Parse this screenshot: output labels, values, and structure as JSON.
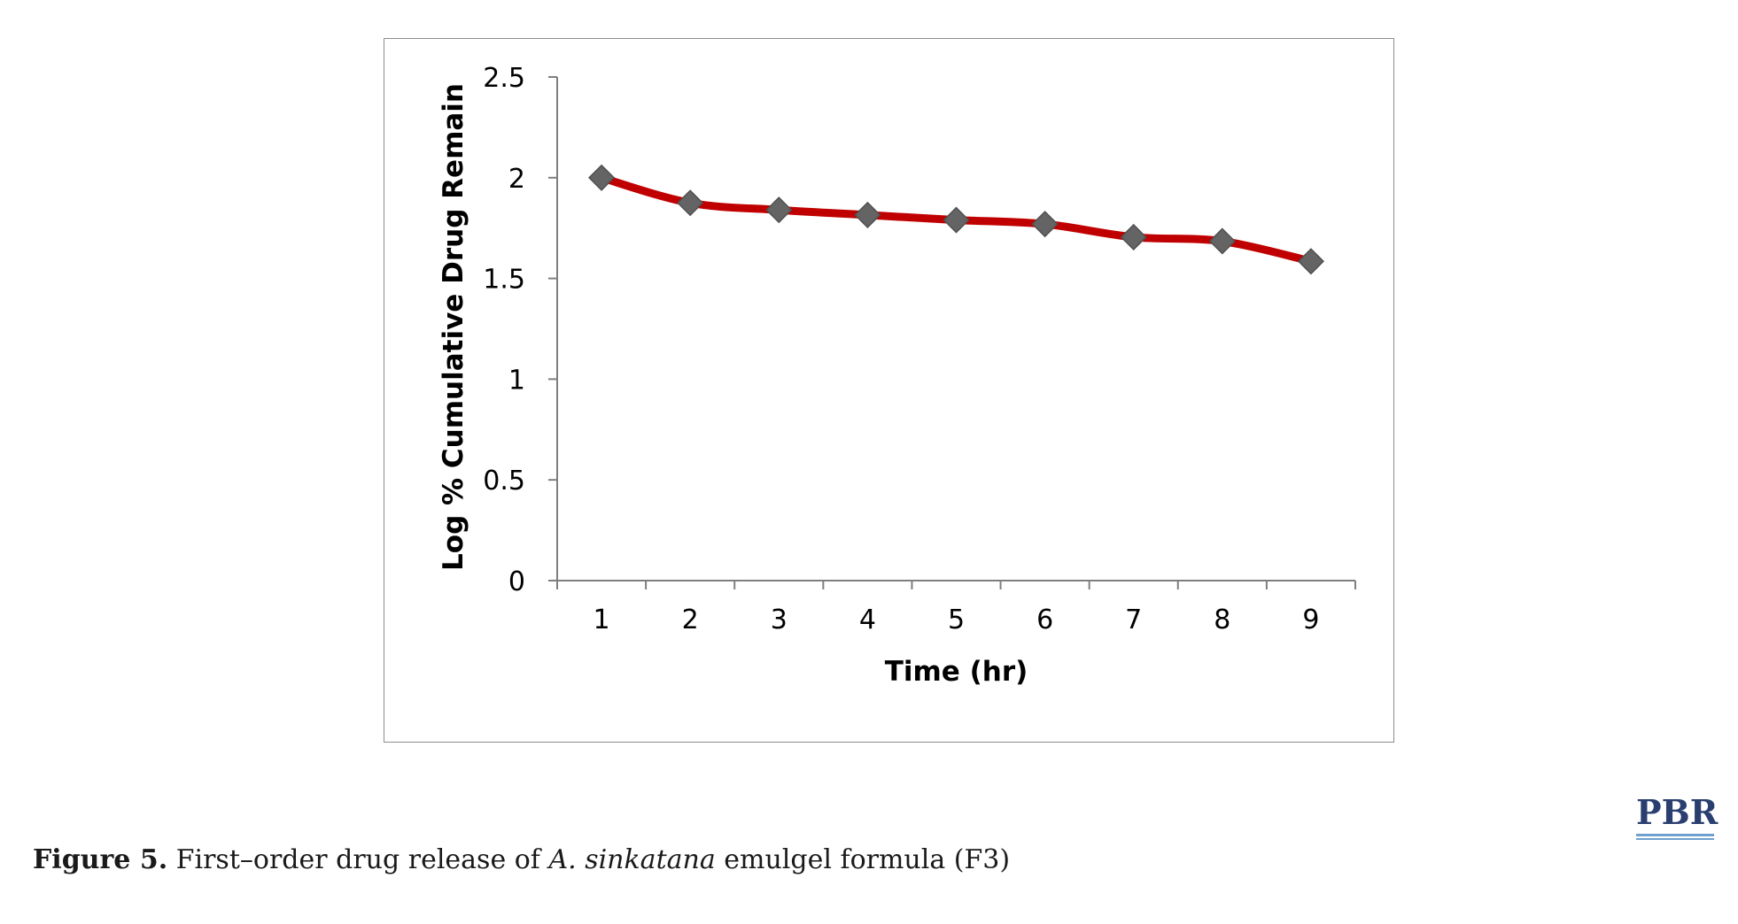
{
  "chart_data": {
    "type": "line",
    "title": "",
    "xlabel": "Time (hr)",
    "ylabel": "Log % Cumulative Drug Remain",
    "categories": [
      "1",
      "2",
      "3",
      "4",
      "5",
      "6",
      "7",
      "8",
      "9"
    ],
    "series": [
      {
        "values": [
          2.0,
          1.875,
          1.84,
          1.815,
          1.79,
          1.77,
          1.705,
          1.685,
          1.585
        ],
        "line_color": "#c00000",
        "marker_color": "#646464",
        "marker": "diamond"
      }
    ],
    "ylim": [
      0,
      2.5
    ],
    "yticks": [
      "0",
      "0.5",
      "1",
      "1.5",
      "2",
      "2.5"
    ],
    "grid": false,
    "legend": "none"
  },
  "caption": {
    "label": "Figure 5.",
    "text_before": " First–order drug release of ",
    "italic": "A. sinkatana",
    "text_after": " emulgel formula (F3)"
  },
  "logo": {
    "text": "PBR",
    "color": "#2a3f70",
    "rule_color": "#6fa0cf"
  }
}
